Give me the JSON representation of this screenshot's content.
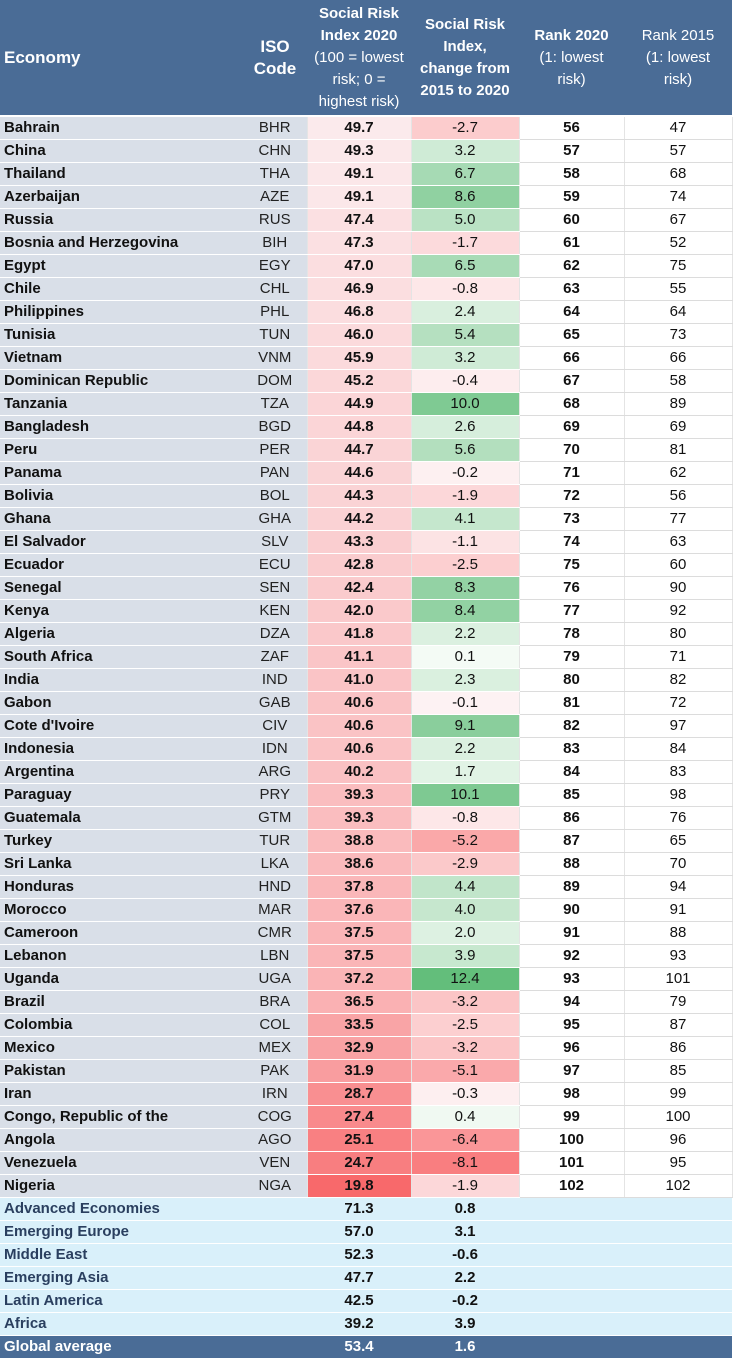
{
  "chart_data": {
    "type": "table",
    "headers": {
      "economy": "Economy",
      "iso": "ISO Code",
      "index_2020": [
        "Social Risk",
        "Index 2020",
        "(100 = lowest",
        "risk; 0 =",
        "highest risk)"
      ],
      "change": [
        "Social Risk",
        "Index,",
        "change from",
        "2015 to 2020"
      ],
      "rank_2020": [
        "Rank 2020",
        "(1: lowest",
        "risk)"
      ],
      "rank_2015": [
        "Rank 2015",
        "(1: lowest",
        "risk)"
      ]
    },
    "rows": [
      {
        "economy": "Bahrain",
        "iso": "BHR",
        "index": "49.7",
        "change": "-2.7",
        "rank2020": "56",
        "rank2015": "47"
      },
      {
        "economy": "China",
        "iso": "CHN",
        "index": "49.3",
        "change": "3.2",
        "rank2020": "57",
        "rank2015": "57"
      },
      {
        "economy": "Thailand",
        "iso": "THA",
        "index": "49.1",
        "change": "6.7",
        "rank2020": "58",
        "rank2015": "68"
      },
      {
        "economy": "Azerbaijan",
        "iso": "AZE",
        "index": "49.1",
        "change": "8.6",
        "rank2020": "59",
        "rank2015": "74"
      },
      {
        "economy": "Russia",
        "iso": "RUS",
        "index": "47.4",
        "change": "5.0",
        "rank2020": "60",
        "rank2015": "67"
      },
      {
        "economy": "Bosnia and Herzegovina",
        "iso": "BIH",
        "index": "47.3",
        "change": "-1.7",
        "rank2020": "61",
        "rank2015": "52"
      },
      {
        "economy": "Egypt",
        "iso": "EGY",
        "index": "47.0",
        "change": "6.5",
        "rank2020": "62",
        "rank2015": "75"
      },
      {
        "economy": "Chile",
        "iso": "CHL",
        "index": "46.9",
        "change": "-0.8",
        "rank2020": "63",
        "rank2015": "55"
      },
      {
        "economy": "Philippines",
        "iso": "PHL",
        "index": "46.8",
        "change": "2.4",
        "rank2020": "64",
        "rank2015": "64"
      },
      {
        "economy": "Tunisia",
        "iso": "TUN",
        "index": "46.0",
        "change": "5.4",
        "rank2020": "65",
        "rank2015": "73"
      },
      {
        "economy": "Vietnam",
        "iso": "VNM",
        "index": "45.9",
        "change": "3.2",
        "rank2020": "66",
        "rank2015": "66"
      },
      {
        "economy": "Dominican Republic",
        "iso": "DOM",
        "index": "45.2",
        "change": "-0.4",
        "rank2020": "67",
        "rank2015": "58"
      },
      {
        "economy": "Tanzania",
        "iso": "TZA",
        "index": "44.9",
        "change": "10.0",
        "rank2020": "68",
        "rank2015": "89"
      },
      {
        "economy": "Bangladesh",
        "iso": "BGD",
        "index": "44.8",
        "change": "2.6",
        "rank2020": "69",
        "rank2015": "69"
      },
      {
        "economy": "Peru",
        "iso": "PER",
        "index": "44.7",
        "change": "5.6",
        "rank2020": "70",
        "rank2015": "81"
      },
      {
        "economy": "Panama",
        "iso": "PAN",
        "index": "44.6",
        "change": "-0.2",
        "rank2020": "71",
        "rank2015": "62"
      },
      {
        "economy": "Bolivia",
        "iso": "BOL",
        "index": "44.3",
        "change": "-1.9",
        "rank2020": "72",
        "rank2015": "56"
      },
      {
        "economy": "Ghana",
        "iso": "GHA",
        "index": "44.2",
        "change": "4.1",
        "rank2020": "73",
        "rank2015": "77"
      },
      {
        "economy": "El Salvador",
        "iso": "SLV",
        "index": "43.3",
        "change": "-1.1",
        "rank2020": "74",
        "rank2015": "63"
      },
      {
        "economy": "Ecuador",
        "iso": "ECU",
        "index": "42.8",
        "change": "-2.5",
        "rank2020": "75",
        "rank2015": "60"
      },
      {
        "economy": "Senegal",
        "iso": "SEN",
        "index": "42.4",
        "change": "8.3",
        "rank2020": "76",
        "rank2015": "90"
      },
      {
        "economy": "Kenya",
        "iso": "KEN",
        "index": "42.0",
        "change": "8.4",
        "rank2020": "77",
        "rank2015": "92"
      },
      {
        "economy": "Algeria",
        "iso": "DZA",
        "index": "41.8",
        "change": "2.2",
        "rank2020": "78",
        "rank2015": "80"
      },
      {
        "economy": "South Africa",
        "iso": "ZAF",
        "index": "41.1",
        "change": "0.1",
        "rank2020": "79",
        "rank2015": "71"
      },
      {
        "economy": "India",
        "iso": "IND",
        "index": "41.0",
        "change": "2.3",
        "rank2020": "80",
        "rank2015": "82"
      },
      {
        "economy": "Gabon",
        "iso": "GAB",
        "index": "40.6",
        "change": "-0.1",
        "rank2020": "81",
        "rank2015": "72"
      },
      {
        "economy": "Cote d'Ivoire",
        "iso": "CIV",
        "index": "40.6",
        "change": "9.1",
        "rank2020": "82",
        "rank2015": "97"
      },
      {
        "economy": "Indonesia",
        "iso": "IDN",
        "index": "40.6",
        "change": "2.2",
        "rank2020": "83",
        "rank2015": "84"
      },
      {
        "economy": "Argentina",
        "iso": "ARG",
        "index": "40.2",
        "change": "1.7",
        "rank2020": "84",
        "rank2015": "83"
      },
      {
        "economy": "Paraguay",
        "iso": "PRY",
        "index": "39.3",
        "change": "10.1",
        "rank2020": "85",
        "rank2015": "98"
      },
      {
        "economy": "Guatemala",
        "iso": "GTM",
        "index": "39.3",
        "change": "-0.8",
        "rank2020": "86",
        "rank2015": "76"
      },
      {
        "economy": "Turkey",
        "iso": "TUR",
        "index": "38.8",
        "change": "-5.2",
        "rank2020": "87",
        "rank2015": "65"
      },
      {
        "economy": "Sri Lanka",
        "iso": "LKA",
        "index": "38.6",
        "change": "-2.9",
        "rank2020": "88",
        "rank2015": "70"
      },
      {
        "economy": "Honduras",
        "iso": "HND",
        "index": "37.8",
        "change": "4.4",
        "rank2020": "89",
        "rank2015": "94"
      },
      {
        "economy": "Morocco",
        "iso": "MAR",
        "index": "37.6",
        "change": "4.0",
        "rank2020": "90",
        "rank2015": "91"
      },
      {
        "economy": "Cameroon",
        "iso": "CMR",
        "index": "37.5",
        "change": "2.0",
        "rank2020": "91",
        "rank2015": "88"
      },
      {
        "economy": "Lebanon",
        "iso": "LBN",
        "index": "37.5",
        "change": "3.9",
        "rank2020": "92",
        "rank2015": "93"
      },
      {
        "economy": "Uganda",
        "iso": "UGA",
        "index": "37.2",
        "change": "12.4",
        "rank2020": "93",
        "rank2015": "101"
      },
      {
        "economy": "Brazil",
        "iso": "BRA",
        "index": "36.5",
        "change": "-3.2",
        "rank2020": "94",
        "rank2015": "79"
      },
      {
        "economy": "Colombia",
        "iso": "COL",
        "index": "33.5",
        "change": "-2.5",
        "rank2020": "95",
        "rank2015": "87"
      },
      {
        "economy": "Mexico",
        "iso": "MEX",
        "index": "32.9",
        "change": "-3.2",
        "rank2020": "96",
        "rank2015": "86"
      },
      {
        "economy": "Pakistan",
        "iso": "PAK",
        "index": "31.9",
        "change": "-5.1",
        "rank2020": "97",
        "rank2015": "85"
      },
      {
        "economy": "Iran",
        "iso": "IRN",
        "index": "28.7",
        "change": "-0.3",
        "rank2020": "98",
        "rank2015": "99"
      },
      {
        "economy": "Congo, Republic of the",
        "iso": "COG",
        "index": "27.4",
        "change": "0.4",
        "rank2020": "99",
        "rank2015": "100"
      },
      {
        "economy": "Angola",
        "iso": "AGO",
        "index": "25.1",
        "change": "-6.4",
        "rank2020": "100",
        "rank2015": "96"
      },
      {
        "economy": "Venezuela",
        "iso": "VEN",
        "index": "24.7",
        "change": "-8.1",
        "rank2020": "101",
        "rank2015": "95"
      },
      {
        "economy": "Nigeria",
        "iso": "NGA",
        "index": "19.8",
        "change": "-1.9",
        "rank2020": "102",
        "rank2015": "102"
      }
    ],
    "regional": [
      {
        "name": "Advanced Economies",
        "index": "71.3",
        "change": "0.8"
      },
      {
        "name": "Emerging Europe",
        "index": "57.0",
        "change": "3.1"
      },
      {
        "name": "Middle East",
        "index": "52.3",
        "change": "-0.6"
      },
      {
        "name": "Emerging Asia",
        "index": "47.7",
        "change": "2.2"
      },
      {
        "name": "Latin America",
        "index": "42.5",
        "change": "-0.2"
      },
      {
        "name": "Africa",
        "index": "39.2",
        "change": "3.9"
      }
    ],
    "global": {
      "name": "Global average",
      "index": "53.4",
      "change": "1.6"
    }
  },
  "colors": {
    "header_bg": "#4a6c96",
    "label_bg": "#d9dfe8",
    "regional_bg": "#d9f0fa",
    "scale_low": "#f8696b",
    "scale_mid": "#fcfcff",
    "scale_high": "#63be7b"
  }
}
